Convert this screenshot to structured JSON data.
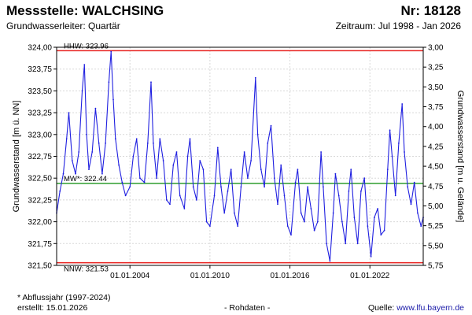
{
  "header": {
    "title": "Messstelle: WALCHSING",
    "number": "Nr: 18128",
    "aquifer": "Grundwasserleiter: Quartär",
    "period": "Zeitraum: Jul 1998 - Jan 2026"
  },
  "footer": {
    "note": "* Abflussjahr (1997-2024)",
    "created": "erstellt:  15.01.2026",
    "raw": "- Rohdaten -",
    "source_label": "Quelle:",
    "source_link": "www.lfu.bayern.de"
  },
  "chart_data": {
    "type": "line",
    "title": "",
    "ylabel": "Grundwasserstand [m ü. NN]",
    "y2label": "Grundwasserstand [m u. Gelände]",
    "ylim": [
      321.5,
      324.0
    ],
    "y2lim": [
      5.75,
      3.0
    ],
    "xlim": [
      "1998-07",
      "2026-01"
    ],
    "x_ticks": [
      "01.01.2004",
      "01.01.2010",
      "01.01.2016",
      "01.01.2022"
    ],
    "y_ticks": [
      "321,50",
      "321,75",
      "322,00",
      "322,25",
      "322,50",
      "322,75",
      "323,00",
      "323,25",
      "323,50",
      "323,75",
      "324,00"
    ],
    "y2_ticks": [
      "5,75",
      "5,50",
      "5,25",
      "5,00",
      "4,75",
      "4,50",
      "4,25",
      "4,00",
      "3,75",
      "3,50",
      "3,25",
      "3,00"
    ],
    "grid": true,
    "reference_lines": [
      {
        "label": "HHW: 323.96",
        "value": 323.96,
        "color": "#e8211f"
      },
      {
        "label": "MW*: 322.44",
        "value": 322.44,
        "color": "#2e9e2e"
      },
      {
        "label": "NNW: 321.53",
        "value": 321.53,
        "color": "#e8211f"
      }
    ],
    "series": [
      {
        "color": "#1f1fe0",
        "points": [
          [
            "1998-07",
            322.1
          ],
          [
            "1998-10",
            322.35
          ],
          [
            "1999-01",
            322.55
          ],
          [
            "1999-04",
            322.95
          ],
          [
            "1999-06",
            323.25
          ],
          [
            "1999-09",
            322.7
          ],
          [
            "1999-12",
            322.55
          ],
          [
            "2000-03",
            322.8
          ],
          [
            "2000-06",
            323.5
          ],
          [
            "2000-08",
            323.8
          ],
          [
            "2000-10",
            323.0
          ],
          [
            "2000-12",
            322.6
          ],
          [
            "2001-03",
            322.8
          ],
          [
            "2001-06",
            323.3
          ],
          [
            "2001-09",
            322.9
          ],
          [
            "2001-12",
            322.55
          ],
          [
            "2002-03",
            322.9
          ],
          [
            "2002-06",
            323.6
          ],
          [
            "2002-08",
            323.95
          ],
          [
            "2002-10",
            323.4
          ],
          [
            "2002-12",
            322.95
          ],
          [
            "2003-03",
            322.65
          ],
          [
            "2003-06",
            322.45
          ],
          [
            "2003-09",
            322.3
          ],
          [
            "2004-01",
            322.4
          ],
          [
            "2004-04",
            322.75
          ],
          [
            "2004-07",
            322.95
          ],
          [
            "2004-10",
            322.5
          ],
          [
            "2005-02",
            322.45
          ],
          [
            "2005-05",
            322.9
          ],
          [
            "2005-08",
            323.6
          ],
          [
            "2005-10",
            322.9
          ],
          [
            "2006-01",
            322.5
          ],
          [
            "2006-04",
            322.95
          ],
          [
            "2006-07",
            322.7
          ],
          [
            "2006-10",
            322.25
          ],
          [
            "2007-01",
            322.2
          ],
          [
            "2007-04",
            322.65
          ],
          [
            "2007-07",
            322.8
          ],
          [
            "2007-10",
            322.3
          ],
          [
            "2008-02",
            322.15
          ],
          [
            "2008-05",
            322.75
          ],
          [
            "2008-07",
            322.95
          ],
          [
            "2008-10",
            322.4
          ],
          [
            "2009-01",
            322.25
          ],
          [
            "2009-04",
            322.7
          ],
          [
            "2009-07",
            322.6
          ],
          [
            "2009-10",
            322.0
          ],
          [
            "2010-01",
            321.95
          ],
          [
            "2010-05",
            322.3
          ],
          [
            "2010-08",
            322.85
          ],
          [
            "2010-11",
            322.4
          ],
          [
            "2011-02",
            322.1
          ],
          [
            "2011-05",
            322.35
          ],
          [
            "2011-08",
            322.6
          ],
          [
            "2011-11",
            322.1
          ],
          [
            "2012-02",
            321.95
          ],
          [
            "2012-05",
            322.4
          ],
          [
            "2012-08",
            322.8
          ],
          [
            "2012-11",
            322.5
          ],
          [
            "2013-02",
            322.7
          ],
          [
            "2013-06",
            323.65
          ],
          [
            "2013-08",
            323.0
          ],
          [
            "2013-11",
            322.6
          ],
          [
            "2014-02",
            322.4
          ],
          [
            "2014-05",
            322.9
          ],
          [
            "2014-08",
            323.1
          ],
          [
            "2014-11",
            322.5
          ],
          [
            "2015-02",
            322.2
          ],
          [
            "2015-05",
            322.65
          ],
          [
            "2015-08",
            322.3
          ],
          [
            "2015-11",
            321.95
          ],
          [
            "2016-02",
            321.85
          ],
          [
            "2016-06",
            322.45
          ],
          [
            "2016-08",
            322.6
          ],
          [
            "2016-11",
            322.1
          ],
          [
            "2017-02",
            322.0
          ],
          [
            "2017-05",
            322.4
          ],
          [
            "2017-08",
            322.15
          ],
          [
            "2017-11",
            321.9
          ],
          [
            "2018-02",
            322.0
          ],
          [
            "2018-05",
            322.8
          ],
          [
            "2018-07",
            322.4
          ],
          [
            "2018-10",
            321.75
          ],
          [
            "2019-01",
            321.55
          ],
          [
            "2019-04",
            322.1
          ],
          [
            "2019-06",
            322.55
          ],
          [
            "2019-09",
            322.3
          ],
          [
            "2019-12",
            322.0
          ],
          [
            "2020-03",
            321.75
          ],
          [
            "2020-06",
            322.35
          ],
          [
            "2020-08",
            322.6
          ],
          [
            "2020-11",
            322.05
          ],
          [
            "2021-02",
            321.75
          ],
          [
            "2021-05",
            322.35
          ],
          [
            "2021-08",
            322.5
          ],
          [
            "2021-11",
            321.95
          ],
          [
            "2022-02",
            321.6
          ],
          [
            "2022-05",
            322.05
          ],
          [
            "2022-08",
            322.15
          ],
          [
            "2022-11",
            321.85
          ],
          [
            "2023-02",
            321.9
          ],
          [
            "2023-05",
            322.6
          ],
          [
            "2023-07",
            323.05
          ],
          [
            "2023-09",
            322.75
          ],
          [
            "2023-12",
            322.3
          ],
          [
            "2024-03",
            322.9
          ],
          [
            "2024-06",
            323.35
          ],
          [
            "2024-08",
            322.8
          ],
          [
            "2024-11",
            322.4
          ],
          [
            "2025-02",
            322.2
          ],
          [
            "2025-05",
            322.45
          ],
          [
            "2025-08",
            322.1
          ],
          [
            "2025-11",
            321.95
          ],
          [
            "2026-01",
            322.05
          ]
        ]
      }
    ]
  }
}
